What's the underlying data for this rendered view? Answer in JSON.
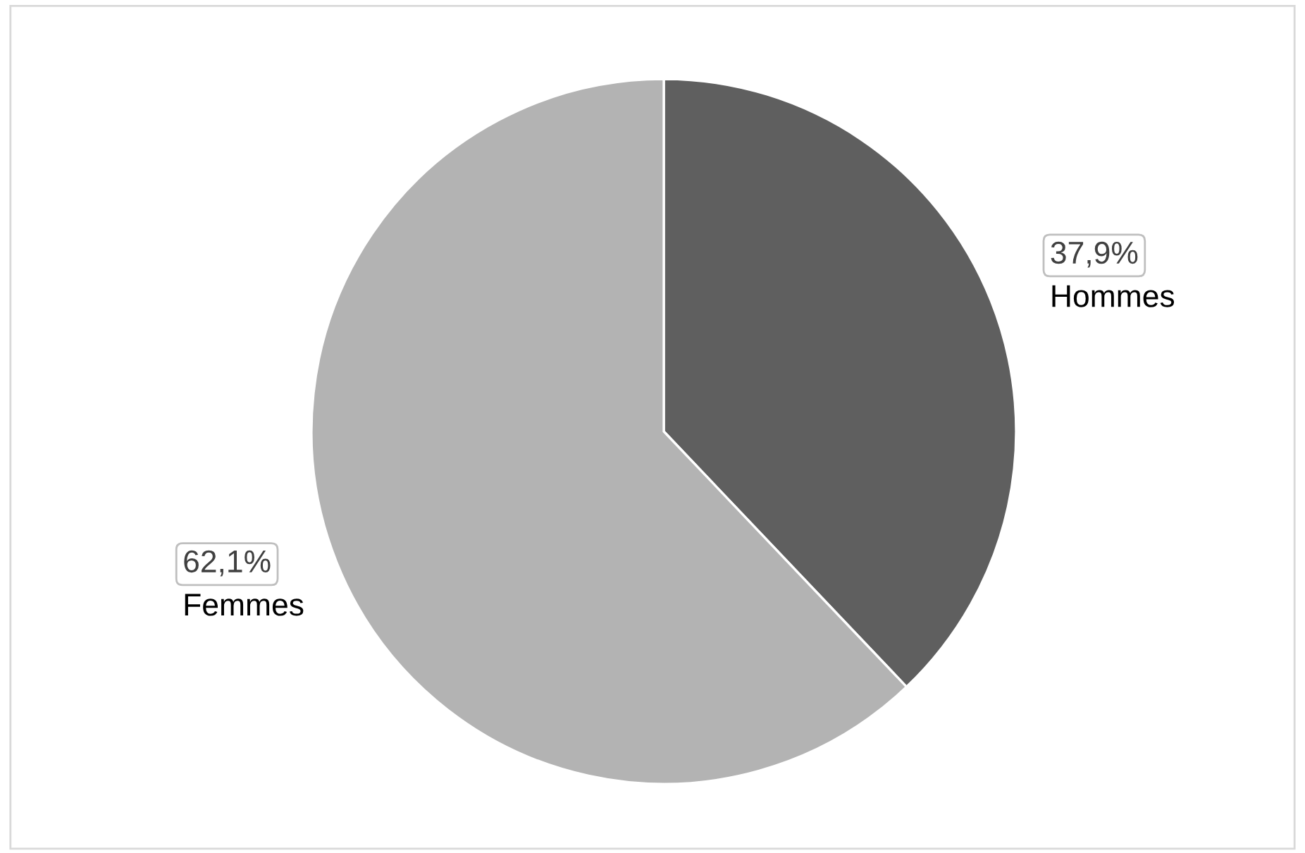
{
  "chart_data": {
    "type": "pie",
    "categories": [
      "Hommes",
      "Femmes"
    ],
    "values": [
      37.9,
      62.1
    ],
    "value_labels": [
      "37,9%",
      "62,1%"
    ],
    "colors": [
      "#5f5f5f",
      "#b3b3b3"
    ]
  }
}
